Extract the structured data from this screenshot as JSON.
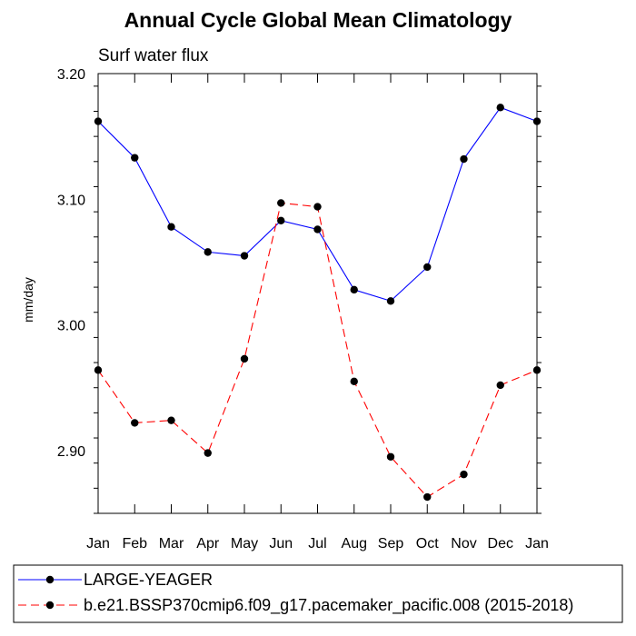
{
  "chart_data": {
    "type": "line",
    "title": "Annual Cycle Global Mean Climatology",
    "subtitle": "Surf water flux",
    "xlabel": "",
    "ylabel": "mm/day",
    "categories": [
      "Jan",
      "Feb",
      "Mar",
      "Apr",
      "May",
      "Jun",
      "Jul",
      "Aug",
      "Sep",
      "Oct",
      "Nov",
      "Dec",
      "Jan"
    ],
    "ylim": [
      2.85,
      3.2
    ],
    "yticks": [
      2.9,
      3.0,
      3.1,
      3.2
    ],
    "ytick_labels": [
      "2.90",
      "3.00",
      "3.10",
      "3.20"
    ],
    "grid": false,
    "legend_position": "bottom",
    "series": [
      {
        "name": "LARGE-YEAGER",
        "color": "#0000ff",
        "line_style": "solid",
        "marker": "filled-circle",
        "values": [
          3.162,
          3.133,
          3.078,
          3.058,
          3.055,
          3.083,
          3.076,
          3.028,
          3.019,
          3.046,
          3.132,
          3.173,
          3.162
        ]
      },
      {
        "name": "b.e21.BSSP370cmip6.f09_g17.pacemaker_pacific.008 (2015-2018)",
        "color": "#ff0000",
        "line_style": "dashed",
        "marker": "filled-circle",
        "values": [
          2.964,
          2.922,
          2.924,
          2.898,
          2.973,
          3.097,
          3.094,
          2.955,
          2.895,
          2.863,
          2.881,
          2.952,
          2.964
        ]
      }
    ]
  }
}
